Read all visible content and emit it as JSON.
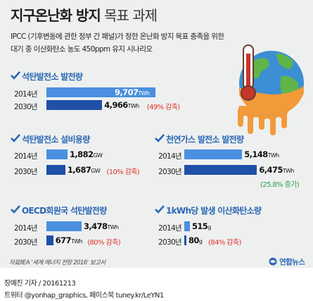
{
  "title": {
    "bold": "지구온난화 방지",
    "light": "목표 과제"
  },
  "description": [
    "IPCC (기후변동에 관한 정부 간 패널)가 정한 온난화 방지 목표 충족을 위한",
    "대기 중 이산화탄소 농도 450ppm 유지 시나리오"
  ],
  "colors": {
    "bar_2014": "#4a8fe0",
    "bar_2030": "#1f50a8",
    "section_title": "#2a67b3",
    "decrease": "#e0332b",
    "increase": "#2c9a52",
    "background": "#eef0f0"
  },
  "icons": [
    "melting-earth-thermometer-illustration",
    "check-icon",
    "yonhap-logo-icon"
  ],
  "chart_data": [
    {
      "type": "bar",
      "title": "석탄발전소 발전량",
      "categories": [
        "2014년",
        "2030년"
      ],
      "values": [
        9707,
        4966
      ],
      "value_labels": [
        "9,707",
        "4,966"
      ],
      "unit": "TWh",
      "change": "(49% 감축)",
      "change_type": "decrease"
    },
    {
      "type": "bar",
      "title": "석탄발전소 설비용량",
      "categories": [
        "2014년",
        "2030년"
      ],
      "values": [
        1882,
        1687
      ],
      "value_labels": [
        "1,882",
        "1,687"
      ],
      "unit": "GW",
      "change": "(10% 감축)",
      "change_type": "decrease"
    },
    {
      "type": "bar",
      "title": "천연가스 발전소 발전량",
      "categories": [
        "2014년",
        "2030년"
      ],
      "values": [
        5148,
        6475
      ],
      "value_labels": [
        "5,148",
        "6,475"
      ],
      "unit": "TWh",
      "change": "(25.8% 증가)",
      "change_type": "increase"
    },
    {
      "type": "bar",
      "title": "OECD회원국 석탄발전량",
      "categories": [
        "2014년",
        "2030년"
      ],
      "values": [
        3478,
        677
      ],
      "value_labels": [
        "3,478",
        "677"
      ],
      "unit": "TWh",
      "change": "(80% 감축)",
      "change_type": "decrease"
    },
    {
      "type": "bar",
      "title": "1kWh당 발생 이산화탄소량",
      "categories": [
        "2014년",
        "2030년"
      ],
      "values": [
        515,
        80
      ],
      "value_labels": [
        "515",
        "80"
      ],
      "unit": "g",
      "change": "(84% 감축)",
      "change_type": "decrease"
    }
  ],
  "source": "자료/IEA '세계 에너지 전망 2016' 보고서",
  "logo": "연합뉴스",
  "credit": [
    "장예진 기자 / 20161213",
    "트위터 @yonhap_graphics, 페이스북 tuney.kr/LeYN1"
  ]
}
